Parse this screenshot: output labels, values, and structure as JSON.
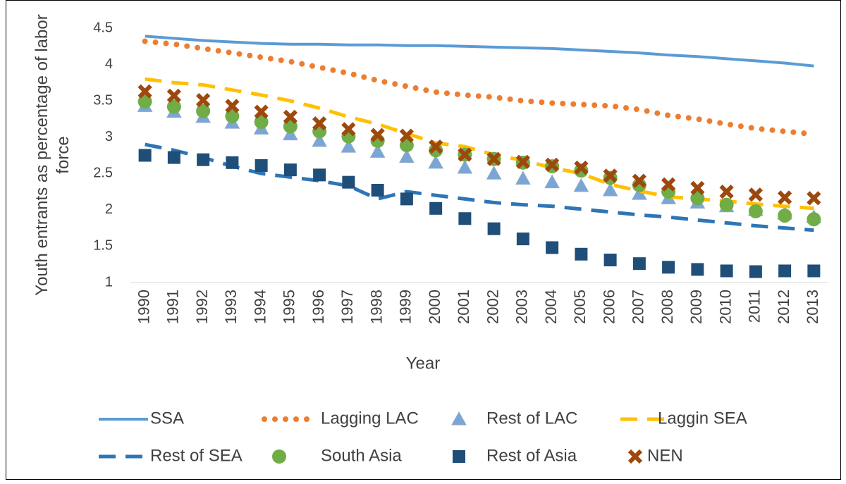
{
  "chart_data": {
    "type": "line",
    "xlabel": "Year",
    "ylabel": "Youth entrants as percentage of labor force",
    "categories": [
      "1990",
      "1991",
      "1992",
      "1993",
      "1994",
      "1995",
      "1996",
      "1997",
      "1998",
      "1999",
      "2000",
      "2001",
      "2002",
      "2003",
      "2004",
      "2005",
      "2006",
      "2007",
      "2008",
      "2009",
      "2010",
      "2011",
      "2012",
      "2013"
    ],
    "ylim": [
      1,
      4.5
    ],
    "yticks": [
      1,
      1.5,
      2,
      2.5,
      3,
      3.5,
      4,
      4.5
    ],
    "grid": false,
    "legend": "bottom",
    "series": [
      {
        "name": "SSA",
        "color": "#5b9bd5",
        "line": "solid",
        "marker": null,
        "values": [
          4.39,
          4.36,
          4.33,
          4.31,
          4.29,
          4.28,
          4.28,
          4.27,
          4.27,
          4.26,
          4.26,
          4.25,
          4.24,
          4.23,
          4.22,
          4.2,
          4.18,
          4.16,
          4.13,
          4.11,
          4.08,
          4.05,
          4.02,
          3.98
        ]
      },
      {
        "name": "Lagging LAC",
        "color": "#ed7d31",
        "line": "dotted",
        "marker": null,
        "values": [
          4.32,
          4.28,
          4.22,
          4.16,
          4.1,
          4.04,
          3.96,
          3.88,
          3.78,
          3.7,
          3.62,
          3.58,
          3.55,
          3.5,
          3.47,
          3.45,
          3.43,
          3.38,
          3.3,
          3.25,
          3.18,
          3.12,
          3.08,
          3.04
        ]
      },
      {
        "name": "Rest of LAC",
        "color": "#7aa6d6",
        "line": null,
        "marker": "triangle",
        "values": [
          3.43,
          3.35,
          3.28,
          3.2,
          3.12,
          3.04,
          2.95,
          2.87,
          2.8,
          2.73,
          2.65,
          2.58,
          2.5,
          2.43,
          2.38,
          2.33,
          2.27,
          2.22,
          2.16,
          2.1,
          2.05,
          2.0,
          1.95,
          1.9
        ]
      },
      {
        "name": "Laggin SEA",
        "color": "#ffc000",
        "line": "dashed",
        "marker": null,
        "values": [
          3.8,
          3.75,
          3.72,
          3.65,
          3.58,
          3.5,
          3.4,
          3.28,
          3.18,
          3.05,
          2.92,
          2.87,
          2.76,
          2.68,
          2.58,
          2.5,
          2.35,
          2.26,
          2.18,
          2.15,
          2.12,
          2.08,
          2.05,
          2.02
        ]
      },
      {
        "name": "Rest of SEA",
        "color": "#2e75b6",
        "line": "dashed",
        "marker": null,
        "values": [
          2.9,
          2.82,
          2.72,
          2.6,
          2.5,
          2.45,
          2.4,
          2.33,
          2.15,
          2.25,
          2.2,
          2.15,
          2.1,
          2.07,
          2.05,
          2.01,
          1.97,
          1.93,
          1.9,
          1.86,
          1.82,
          1.78,
          1.75,
          1.72
        ]
      },
      {
        "name": "South Asia",
        "color": "#70ad47",
        "line": null,
        "marker": "circle",
        "values": [
          3.49,
          3.42,
          3.36,
          3.29,
          3.21,
          3.15,
          3.08,
          3.01,
          2.95,
          2.89,
          2.82,
          2.76,
          2.7,
          2.65,
          2.6,
          2.54,
          2.44,
          2.34,
          2.25,
          2.16,
          2.07,
          1.98,
          1.92,
          1.87
        ]
      },
      {
        "name": "Rest of Asia",
        "color": "#1f4e79",
        "line": null,
        "marker": "square",
        "values": [
          2.75,
          2.72,
          2.69,
          2.65,
          2.61,
          2.55,
          2.48,
          2.38,
          2.27,
          2.15,
          2.02,
          1.88,
          1.74,
          1.6,
          1.48,
          1.39,
          1.31,
          1.26,
          1.21,
          1.18,
          1.16,
          1.15,
          1.16,
          1.16
        ]
      },
      {
        "name": "NEN",
        "color": "#9e480e",
        "line": null,
        "marker": "x",
        "values": [
          3.63,
          3.57,
          3.51,
          3.43,
          3.35,
          3.28,
          3.19,
          3.11,
          3.03,
          3.02,
          2.87,
          2.76,
          2.7,
          2.66,
          2.62,
          2.58,
          2.47,
          2.4,
          2.35,
          2.3,
          2.25,
          2.21,
          2.17,
          2.16
        ]
      }
    ]
  }
}
